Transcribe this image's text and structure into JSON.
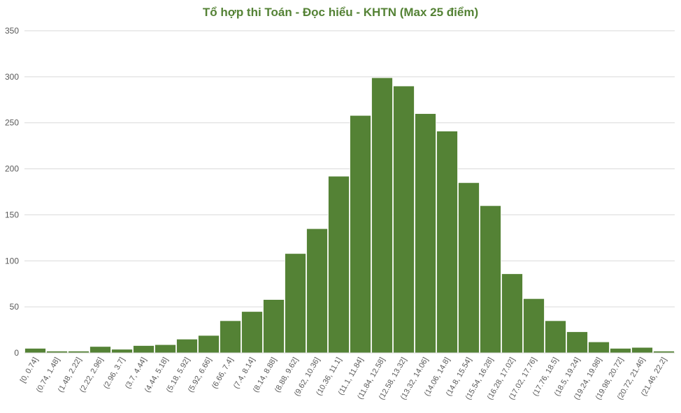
{
  "chart_data": {
    "type": "bar",
    "title": "Tổ hợp thi Toán - Đọc hiểu - KHTN (Max 25 điểm)",
    "xlabel": "",
    "ylabel": "",
    "ylim": [
      0,
      350
    ],
    "yticks": [
      0,
      50,
      100,
      150,
      200,
      250,
      300,
      350
    ],
    "grid": true,
    "legend": "none",
    "bar_color": "#548235",
    "title_color": "#548235",
    "categories": [
      "[0, 0.74]",
      "(0.74, 1.48]",
      "(1.48, 2.22]",
      "(2.22, 2.96]",
      "(2.96, 3.7]",
      "(3.7, 4.44]",
      "(4.44, 5.18]",
      "(5.18, 5.92]",
      "(5.92, 6.66]",
      "(6.66, 7.4]",
      "(7.4, 8.14]",
      "(8.14, 8.88]",
      "(8.88, 9.62]",
      "(9.62, 10.36]",
      "(10.36, 11.1]",
      "(11.1, 11.84]",
      "(11.84, 12.58]",
      "(12.58, 13.32]",
      "(13.32, 14.06]",
      "(14.06, 14.8]",
      "(14.8, 15.54]",
      "(15.54, 16.28]",
      "(16.28, 17.02]",
      "(17.02, 17.76]",
      "(17.76, 18.5]",
      "(18.5, 19.24]",
      "(19.24, 19.98]",
      "(19.98, 20.72]",
      "(20.72, 21.46]",
      "(21.46, 22.2]"
    ],
    "values": [
      5,
      2,
      2,
      7,
      4,
      8,
      9,
      15,
      19,
      35,
      45,
      58,
      108,
      135,
      192,
      258,
      299,
      290,
      260,
      241,
      185,
      160,
      86,
      59,
      35,
      23,
      12,
      5,
      6,
      2
    ]
  }
}
